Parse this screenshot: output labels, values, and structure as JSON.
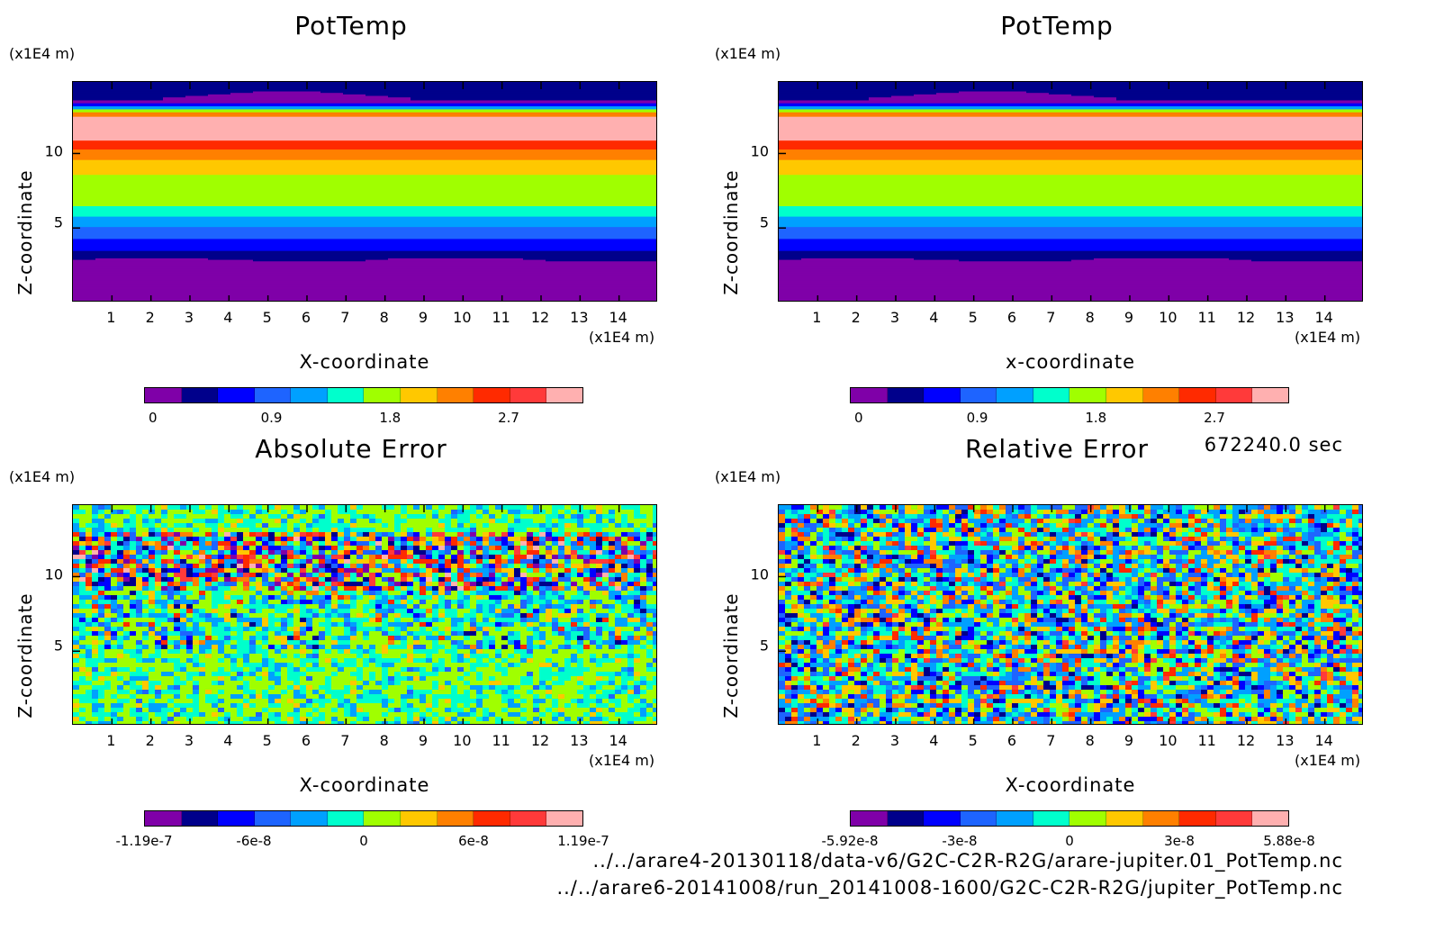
{
  "colors": {
    "colormap": [
      "#7f00a8",
      "#00008b",
      "#0000ff",
      "#1e64ff",
      "#00a0ff",
      "#00ffcc",
      "#a0ff00",
      "#ffc800",
      "#ff8000",
      "#ff2a00",
      "#ff3a3a",
      "#ffb0b0"
    ]
  },
  "time_label": "672240.0 sec",
  "files": [
    "../../arare4-20130118/data-v6/G2C-C2R-R2G/arare-jupiter.01_PotTemp.nc",
    "../../arare6-20141008/run_20141008-1600/G2C-C2R-R2G/jupiter_PotTemp.nc"
  ],
  "chart_data": [
    {
      "type": "heatmap",
      "title": "PotTemp",
      "xlabel": "X-coordinate",
      "ylabel": "Z-coordinate",
      "x_unit": "(x1E4 m)",
      "y_unit": "(x1E4 m)",
      "xticks": [
        "1",
        "2",
        "3",
        "4",
        "5",
        "6",
        "7",
        "8",
        "9",
        "10",
        "11",
        "12",
        "13",
        "14"
      ],
      "yticks": [
        "10",
        "5"
      ],
      "colorbar_ticks": [
        "0",
        "0.9",
        "1.8",
        "2.7"
      ],
      "colorbar_levels": 12,
      "pattern": "layered"
    },
    {
      "type": "heatmap",
      "title": "PotTemp",
      "xlabel": "x-coordinate",
      "ylabel": "Z-coordinate",
      "x_unit": "(x1E4 m)",
      "y_unit": "(x1E4 m)",
      "xticks": [
        "1",
        "2",
        "3",
        "4",
        "5",
        "6",
        "7",
        "8",
        "9",
        "10",
        "11",
        "12",
        "13",
        "14"
      ],
      "yticks": [
        "10",
        "5"
      ],
      "colorbar_ticks": [
        "0",
        "0.9",
        "1.8",
        "2.7"
      ],
      "colorbar_levels": 12,
      "pattern": "layered"
    },
    {
      "type": "heatmap",
      "title": "Absolute Error",
      "xlabel": "X-coordinate",
      "ylabel": "Z-coordinate",
      "x_unit": "(x1E4 m)",
      "y_unit": "(x1E4 m)",
      "xticks": [
        "1",
        "2",
        "3",
        "4",
        "5",
        "6",
        "7",
        "8",
        "9",
        "10",
        "11",
        "12",
        "13",
        "14"
      ],
      "yticks": [
        "10",
        "5"
      ],
      "colorbar_ticks": [
        "-1.19e-7",
        "-6e-8",
        "0",
        "6e-8",
        "1.19e-7"
      ],
      "colorbar_levels": 12,
      "pattern": "noise-absolute"
    },
    {
      "type": "heatmap",
      "title": "Relative Error",
      "xlabel": "X-coordinate",
      "ylabel": "Z-coordinate",
      "x_unit": "(x1E4 m)",
      "y_unit": "(x1E4 m)",
      "xticks": [
        "1",
        "2",
        "3",
        "4",
        "5",
        "6",
        "7",
        "8",
        "9",
        "10",
        "11",
        "12",
        "13",
        "14"
      ],
      "yticks": [
        "10",
        "5"
      ],
      "colorbar_ticks": [
        "-5.92e-8",
        "-3e-8",
        "0",
        "3e-8",
        "5.88e-8"
      ],
      "colorbar_levels": 12,
      "pattern": "noise-relative"
    }
  ]
}
